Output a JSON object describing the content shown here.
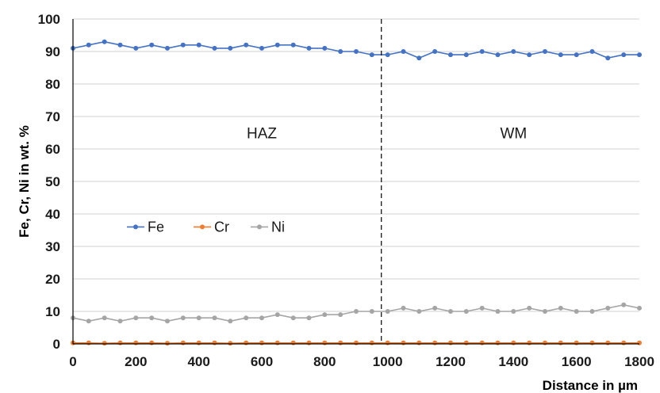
{
  "colors": {
    "fe": "#4472C4",
    "cr": "#ED7D31",
    "ni": "#A5A5A5",
    "grid": "#d0d0d0",
    "axis": "#000000",
    "divider": "#000000"
  },
  "chart_data": {
    "type": "line",
    "xlabel": "Distance in µm",
    "ylabel": "Fe, Cr, Ni in wt. %",
    "xlim": [
      0,
      1800
    ],
    "ylim": [
      0,
      100
    ],
    "xticks": [
      "0",
      "200",
      "400",
      "600",
      "800",
      "1000",
      "1200",
      "1400",
      "1600",
      "1800"
    ],
    "yticks": [
      "0",
      "10",
      "20",
      "30",
      "40",
      "50",
      "60",
      "70",
      "80",
      "90",
      "100"
    ],
    "grid": "horizontal",
    "legend_position": "center-left",
    "boundary_x": 980,
    "regions": [
      {
        "label": "HAZ",
        "x": 600
      },
      {
        "label": "WM",
        "x": 1400
      }
    ],
    "series": [
      {
        "name": "Fe",
        "x": [
          0,
          50,
          100,
          150,
          200,
          250,
          300,
          350,
          400,
          450,
          500,
          550,
          600,
          650,
          700,
          750,
          800,
          850,
          900,
          950,
          1000,
          1050,
          1100,
          1150,
          1200,
          1250,
          1300,
          1350,
          1400,
          1450,
          1500,
          1550,
          1600,
          1650,
          1700,
          1750,
          1800
        ],
        "y": [
          91,
          92,
          93,
          92,
          91,
          92,
          91,
          92,
          92,
          91,
          91,
          92,
          91,
          92,
          92,
          91,
          91,
          90,
          90,
          89,
          89,
          90,
          88,
          90,
          89,
          89,
          90,
          89,
          90,
          89,
          90,
          89,
          89,
          90,
          88,
          89,
          89
        ]
      },
      {
        "name": "Cr",
        "x": [
          0,
          50,
          100,
          150,
          200,
          250,
          300,
          350,
          400,
          450,
          500,
          550,
          600,
          650,
          700,
          750,
          800,
          850,
          900,
          950,
          1000,
          1050,
          1100,
          1150,
          1200,
          1250,
          1300,
          1350,
          1400,
          1450,
          1500,
          1550,
          1600,
          1650,
          1700,
          1750,
          1800
        ],
        "y": [
          0.3,
          0.3,
          0.2,
          0.3,
          0.3,
          0.3,
          0.2,
          0.3,
          0.3,
          0.3,
          0.2,
          0.3,
          0.3,
          0.3,
          0.3,
          0.3,
          0.3,
          0.3,
          0.3,
          0.3,
          0.3,
          0.3,
          0.3,
          0.3,
          0.3,
          0.3,
          0.3,
          0.3,
          0.3,
          0.3,
          0.3,
          0.3,
          0.3,
          0.3,
          0.3,
          0.3,
          0.3
        ]
      },
      {
        "name": "Ni",
        "x": [
          0,
          50,
          100,
          150,
          200,
          250,
          300,
          350,
          400,
          450,
          500,
          550,
          600,
          650,
          700,
          750,
          800,
          850,
          900,
          950,
          1000,
          1050,
          1100,
          1150,
          1200,
          1250,
          1300,
          1350,
          1400,
          1450,
          1500,
          1550,
          1600,
          1650,
          1700,
          1750,
          1800
        ],
        "y": [
          8,
          7,
          8,
          7,
          8,
          8,
          7,
          8,
          8,
          8,
          7,
          8,
          8,
          9,
          8,
          8,
          9,
          9,
          10,
          10,
          10,
          11,
          10,
          11,
          10,
          10,
          11,
          10,
          10,
          11,
          10,
          11,
          10,
          10,
          11,
          12,
          11
        ]
      }
    ]
  }
}
